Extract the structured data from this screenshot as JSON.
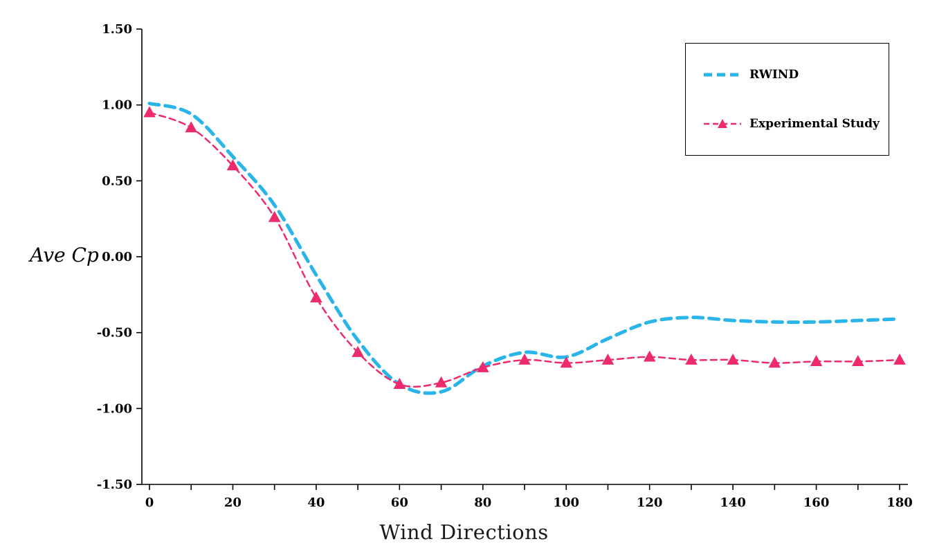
{
  "figure": {
    "background": "#ffffff",
    "y_axis_title": "Ave Cp",
    "x_axis_title": "Wind Directions"
  },
  "chart_data": {
    "type": "line",
    "title": "",
    "xlabel": "Wind Directions",
    "ylabel": "Ave Cp",
    "xlim": [
      0,
      180
    ],
    "ylim": [
      -1.5,
      1.5
    ],
    "grid": false,
    "legend_position": "top-right",
    "x_tick_labeled": [
      0,
      20,
      40,
      60,
      80,
      100,
      120,
      140,
      160,
      180
    ],
    "x_tick_minor_step": 10,
    "y_ticks": [
      1.5,
      1.0,
      0.5,
      0.0,
      -0.5,
      -1.0,
      -1.5
    ],
    "y_tick_labels": [
      "1.50",
      "1.00",
      "0.50",
      "0.00",
      "-0.50",
      "-1.00",
      "-1.50"
    ],
    "x": [
      0,
      10,
      20,
      30,
      40,
      50,
      60,
      70,
      80,
      90,
      100,
      110,
      120,
      130,
      140,
      150,
      160,
      170,
      180
    ],
    "series": [
      {
        "name": "RWIND",
        "color": "#29b5e8",
        "line_style": "dashed",
        "line_width": 5,
        "dash": "14 9",
        "marker": "none",
        "values": [
          1.01,
          0.94,
          0.66,
          0.34,
          -0.12,
          -0.55,
          -0.84,
          -0.89,
          -0.72,
          -0.63,
          -0.66,
          -0.54,
          -0.43,
          -0.4,
          -0.42,
          -0.43,
          -0.43,
          -0.42,
          -0.41
        ]
      },
      {
        "name": "Experimental Study",
        "color": "#ee2a6e",
        "line_style": "dashed",
        "line_width": 2.5,
        "dash": "9 6",
        "marker": "triangle",
        "marker_size": 16,
        "values": [
          0.95,
          0.85,
          0.6,
          0.26,
          -0.27,
          -0.63,
          -0.84,
          -0.83,
          -0.73,
          -0.68,
          -0.7,
          -0.68,
          -0.66,
          -0.68,
          -0.68,
          -0.7,
          -0.69,
          -0.69,
          -0.68
        ]
      }
    ]
  },
  "legend": {
    "items": [
      {
        "label": "RWIND"
      },
      {
        "label": "Experimental Study"
      }
    ]
  }
}
